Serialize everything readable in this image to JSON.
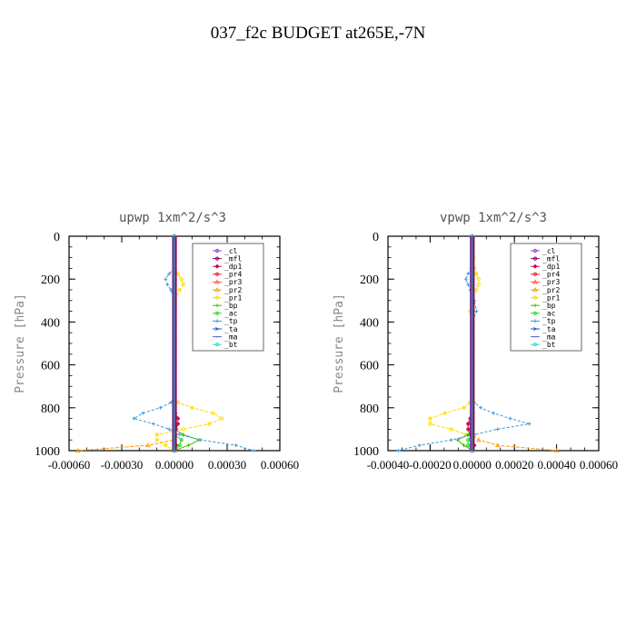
{
  "title": "037_f2c  BUDGET at265E,-7N",
  "legend_labels": [
    "_cl",
    "_mfl",
    "_dp1",
    "_pr4",
    "_pr3",
    "_pr2",
    "_pr1",
    "_bp",
    "_ac",
    "_tp",
    "_ta",
    "_ma",
    "_bt"
  ],
  "series_colors": {
    "_cl": "#8844cc",
    "_mfl": "#880066",
    "_dp1": "#cc0044",
    "_pr4": "#ee2222",
    "_pr3": "#ff5533",
    "_pr2": "#ff9900",
    "_pr1": "#ffdd00",
    "_bp": "#44bb00",
    "_ac": "#22dd22",
    "_tp": "#3399dd",
    "_ta": "#2255dd",
    "_ma": "#5566cc",
    "_bt": "#22dddd"
  },
  "chart_data": [
    {
      "type": "line",
      "title": "upwp   1xm^2/s^3",
      "ylabel": "Pressure [hPa]",
      "xlabel": "",
      "ylim": [
        1000,
        0
      ],
      "xlim": [
        -0.0006,
        0.0006
      ],
      "x_ticks": [
        -0.0006,
        -0.0003,
        0.0,
        0.0003,
        0.0006
      ],
      "x_tick_labels": [
        "-0.00060",
        "-0.00030",
        "0.00000",
        "0.00030",
        "0.00060"
      ],
      "y_ticks": [
        0,
        200,
        400,
        600,
        800,
        1000
      ],
      "y_tick_labels": [
        "0",
        "200",
        "400",
        "600",
        "800",
        "1000"
      ],
      "levels": [
        0,
        50,
        100,
        150,
        175,
        200,
        225,
        250,
        300,
        350,
        400,
        500,
        600,
        700,
        750,
        775,
        800,
        825,
        850,
        875,
        900,
        925,
        950,
        975,
        1000
      ],
      "series": [
        {
          "name": "_cl",
          "values": [
            0,
            0,
            0,
            0,
            0,
            0,
            0,
            0,
            0,
            0,
            0,
            0,
            0,
            0,
            0,
            0,
            0,
            0,
            0,
            0,
            0,
            0,
            0,
            0,
            0
          ]
        },
        {
          "name": "_mfl",
          "values": [
            0,
            0,
            0,
            0,
            0,
            0,
            0,
            0,
            0,
            0,
            0,
            0,
            0,
            0,
            0,
            0,
            0,
            0,
            0,
            0,
            0,
            0,
            0,
            0,
            0
          ]
        },
        {
          "name": "_dp1",
          "values": [
            0,
            0,
            0,
            0,
            0,
            0,
            0,
            0,
            0,
            0,
            0,
            0,
            0,
            0,
            0,
            0,
            0,
            5e-06,
            2e-05,
            2e-05,
            1e-05,
            5e-06,
            0,
            1e-05,
            0
          ]
        },
        {
          "name": "_pr4",
          "values": [
            0,
            0,
            0,
            0,
            0,
            0,
            0,
            0,
            0,
            0,
            0,
            0,
            0,
            0,
            0,
            0,
            0,
            0,
            1e-05,
            1e-05,
            5e-06,
            0,
            0,
            0,
            0
          ]
        },
        {
          "name": "_pr3",
          "values": [
            0,
            0,
            0,
            0,
            0,
            0,
            0,
            0,
            0,
            0,
            0,
            0,
            0,
            0,
            0,
            0,
            0,
            0,
            0,
            0,
            0,
            0,
            0,
            0,
            0
          ]
        },
        {
          "name": "_pr2",
          "values": [
            0,
            0,
            0,
            0,
            0,
            0,
            0,
            0,
            0,
            0,
            0,
            0,
            0,
            0,
            0,
            0,
            0,
            0,
            0,
            0,
            0,
            0,
            0,
            -0.00015,
            -0.00055
          ]
        },
        {
          "name": "_pr1",
          "values": [
            0,
            0,
            0,
            0,
            2e-05,
            4e-05,
            5e-05,
            3e-05,
            0,
            0,
            0,
            0,
            0,
            0,
            0,
            2e-05,
            0.0001,
            0.00022,
            0.00027,
            0.0002,
            5e-05,
            -0.0001,
            -0.0001,
            -5e-05,
            0
          ]
        },
        {
          "name": "_bp",
          "values": [
            0,
            0,
            0,
            0,
            0,
            0,
            0,
            0,
            0,
            0,
            0,
            0,
            0,
            0,
            0,
            0,
            0,
            0,
            0,
            0,
            0,
            5e-05,
            0.00014,
            8e-05,
            0
          ]
        },
        {
          "name": "_ac",
          "values": [
            0,
            0,
            0,
            0,
            0,
            0,
            0,
            0,
            0,
            0,
            0,
            0,
            0,
            0,
            0,
            0,
            0,
            0,
            0,
            0,
            0,
            0,
            4e-05,
            3e-05,
            0
          ]
        },
        {
          "name": "_tp",
          "values": [
            0,
            0,
            0,
            0,
            -3e-05,
            -5e-05,
            -4e-05,
            -2e-05,
            0,
            0,
            0,
            0,
            0,
            0,
            0,
            -2e-05,
            -8e-05,
            -0.00018,
            -0.00023,
            -0.00012,
            -3e-05,
            3e-05,
            0.00015,
            0.00035,
            0.00045
          ]
        },
        {
          "name": "_ta",
          "values": [
            0,
            0,
            0,
            0,
            0,
            0,
            0,
            0,
            0,
            0,
            0,
            0,
            0,
            0,
            0,
            0,
            0,
            0,
            0,
            0,
            0,
            0,
            0,
            0,
            0
          ]
        },
        {
          "name": "_ma",
          "values": [
            0,
            0,
            0,
            0,
            0,
            0,
            0,
            0,
            0,
            0,
            0,
            0,
            0,
            0,
            0,
            0,
            0,
            0,
            0,
            0,
            0,
            0,
            0,
            0,
            0
          ]
        },
        {
          "name": "_bt",
          "values": [
            0,
            0,
            0,
            0,
            0,
            0,
            0,
            0,
            0,
            0,
            0,
            0,
            0,
            0,
            0,
            0,
            0,
            0,
            0,
            0,
            0,
            0,
            0,
            0,
            0
          ]
        }
      ]
    },
    {
      "type": "line",
      "title": "vpwp   1xm^2/s^3",
      "ylabel": "Pressure [hPa]",
      "xlabel": "",
      "ylim": [
        1000,
        0
      ],
      "xlim": [
        -0.0004,
        0.0006
      ],
      "x_ticks": [
        -0.0004,
        -0.0002,
        0.0,
        0.0002,
        0.0004,
        0.0006
      ],
      "x_tick_labels": [
        "-0.00040",
        "-0.00020",
        "0.00000",
        "0.00020",
        "0.00040",
        "0.00060"
      ],
      "y_ticks": [
        0,
        200,
        400,
        600,
        800,
        1000
      ],
      "y_tick_labels": [
        "0",
        "200",
        "400",
        "600",
        "800",
        "1000"
      ],
      "levels": [
        0,
        50,
        100,
        150,
        175,
        200,
        225,
        250,
        300,
        350,
        400,
        500,
        600,
        700,
        750,
        775,
        800,
        825,
        850,
        875,
        900,
        925,
        950,
        975,
        1000
      ],
      "series": [
        {
          "name": "_cl",
          "values": [
            0,
            0,
            0,
            0,
            0,
            0,
            0,
            0,
            0,
            0,
            0,
            0,
            0,
            0,
            0,
            0,
            0,
            0,
            0,
            0,
            0,
            0,
            0,
            0,
            0
          ]
        },
        {
          "name": "_mfl",
          "values": [
            0,
            0,
            0,
            0,
            0,
            0,
            0,
            0,
            0,
            0,
            0,
            0,
            0,
            0,
            0,
            0,
            0,
            0,
            0,
            0,
            0,
            0,
            0,
            0,
            0
          ]
        },
        {
          "name": "_dp1",
          "values": [
            0,
            0,
            0,
            0,
            0,
            0,
            0,
            0,
            0,
            0,
            0,
            0,
            0,
            0,
            0,
            0,
            0,
            0,
            -1e-05,
            -2e-05,
            -2e-05,
            -1e-05,
            0,
            1e-05,
            0
          ]
        },
        {
          "name": "_pr4",
          "values": [
            0,
            0,
            0,
            0,
            0,
            0,
            0,
            0,
            0,
            0,
            0,
            0,
            0,
            0,
            0,
            0,
            0,
            0,
            -5e-06,
            -1e-05,
            -1e-05,
            0,
            0,
            0,
            0
          ]
        },
        {
          "name": "_pr3",
          "values": [
            0,
            0,
            0,
            0,
            0,
            0,
            0,
            0,
            0,
            0,
            0,
            0,
            0,
            0,
            0,
            0,
            0,
            0,
            0,
            0,
            0,
            0,
            0,
            0,
            0
          ]
        },
        {
          "name": "_pr2",
          "values": [
            0,
            0,
            0,
            0,
            0,
            0,
            0,
            0,
            0,
            0,
            0,
            0,
            0,
            0,
            0,
            0,
            0,
            0,
            0,
            0,
            0,
            0,
            3e-05,
            0.00012,
            0.0004
          ]
        },
        {
          "name": "_pr1",
          "values": [
            0,
            0,
            5e-06,
            1e-05,
            2e-05,
            3e-05,
            3e-05,
            2e-05,
            0,
            -1e-05,
            0,
            0,
            0,
            0,
            0,
            -1e-05,
            -4e-05,
            -0.00013,
            -0.0002,
            -0.0002,
            -0.0001,
            -3e-05,
            0,
            0,
            0
          ]
        },
        {
          "name": "_bp",
          "values": [
            0,
            0,
            0,
            0,
            0,
            0,
            0,
            0,
            0,
            0,
            0,
            0,
            0,
            0,
            0,
            0,
            0,
            0,
            0,
            0,
            0,
            -2e-05,
            -7e-05,
            -4e-05,
            0
          ]
        },
        {
          "name": "_ac",
          "values": [
            0,
            0,
            0,
            0,
            0,
            0,
            0,
            0,
            0,
            0,
            0,
            0,
            0,
            0,
            0,
            0,
            0,
            0,
            0,
            0,
            0,
            0,
            -2e-05,
            -2e-05,
            0
          ]
        },
        {
          "name": "_tp",
          "values": [
            0,
            0,
            0,
            -5e-06,
            -2e-05,
            -3e-05,
            -2e-05,
            -1e-05,
            1e-05,
            2e-05,
            0,
            0,
            0,
            0,
            0,
            1e-05,
            4e-05,
            0.0001,
            0.00018,
            0.00027,
            0.00012,
            1e-05,
            -0.0001,
            -0.00025,
            -0.00035
          ]
        },
        {
          "name": "_ta",
          "values": [
            0,
            0,
            0,
            0,
            0,
            0,
            0,
            0,
            0,
            0,
            0,
            0,
            0,
            0,
            0,
            0,
            0,
            0,
            0,
            0,
            0,
            0,
            0,
            0,
            0
          ]
        },
        {
          "name": "_ma",
          "values": [
            0,
            0,
            0,
            0,
            0,
            0,
            0,
            0,
            0,
            0,
            0,
            0,
            0,
            0,
            0,
            0,
            0,
            0,
            0,
            0,
            0,
            0,
            0,
            0,
            0
          ]
        },
        {
          "name": "_bt",
          "values": [
            0,
            0,
            0,
            0,
            0,
            0,
            0,
            0,
            0,
            0,
            0,
            0,
            0,
            0,
            0,
            0,
            0,
            0,
            0,
            0,
            0,
            0,
            0,
            0,
            0
          ]
        }
      ]
    }
  ]
}
